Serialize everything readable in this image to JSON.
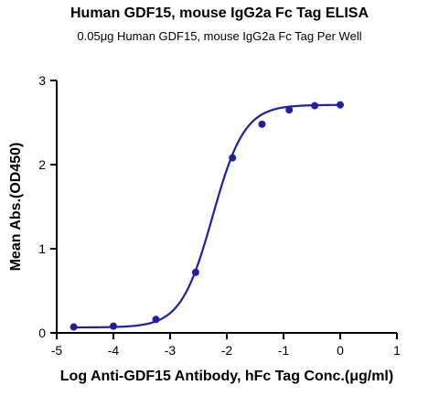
{
  "chart_data": {
    "type": "scatter",
    "title": "Human GDF15, mouse IgG2a Fc Tag ELISA",
    "subtitle": "0.05μg Human GDF15, mouse IgG2a Fc Tag Per Well",
    "xlabel": "Log Anti-GDF15 Antibody, hFc Tag Conc.(μg/ml)",
    "ylabel": "Mean Abs.(OD450)",
    "xlim": [
      -5,
      1
    ],
    "ylim": [
      0,
      3
    ],
    "x_ticks": [
      -5,
      -4,
      -3,
      -2,
      -1,
      0,
      1
    ],
    "y_ticks": [
      0,
      1,
      2,
      3
    ],
    "grid": false,
    "series": [
      {
        "x": [
          -4.7,
          -4.0,
          -3.25,
          -2.55,
          -1.9,
          -1.38,
          -0.9,
          -0.45,
          0.0
        ],
        "y": [
          0.07,
          0.08,
          0.16,
          0.72,
          2.08,
          2.48,
          2.65,
          2.7,
          2.71
        ],
        "color": "#1f1fa6",
        "fit": {
          "model": "4PL",
          "bottom": 0.065,
          "top": 2.71,
          "log_ec50": -2.25,
          "hill_slope": 1.55,
          "x_range": [
            -4.7,
            0.0
          ]
        }
      }
    ]
  }
}
